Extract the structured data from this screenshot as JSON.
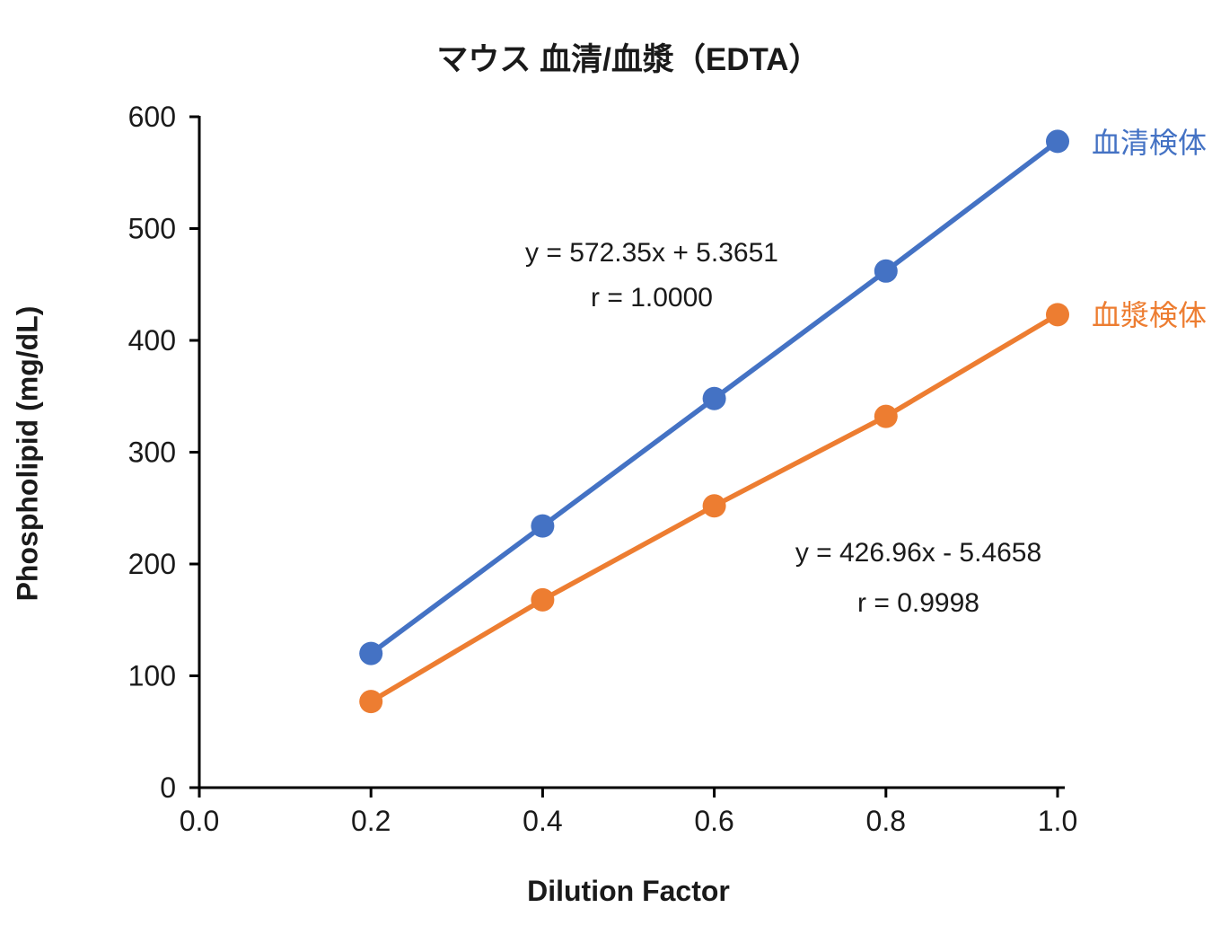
{
  "title": "マウス 血清/血漿（EDTA）",
  "chart_data": {
    "type": "line",
    "x": [
      0.2,
      0.4,
      0.6,
      0.8,
      1.0
    ],
    "series": [
      {
        "name": "血清検体",
        "color": "#4472C4",
        "values": [
          120,
          234,
          348,
          462,
          578
        ],
        "equation": "y = 572.35x + 5.3651",
        "r_label": "r = 1.0000"
      },
      {
        "name": "血漿検体",
        "color": "#ED7D31",
        "values": [
          77,
          168,
          252,
          332,
          423
        ],
        "equation": "y = 426.96x - 5.4658",
        "r_label": "r = 0.9998"
      }
    ],
    "title": "マウス 血清/血漿（EDTA）",
    "xlabel": "Dilution Factor",
    "ylabel": "Phospholipid (mg/dL)",
    "xlim": [
      0.0,
      1.0
    ],
    "ylim": [
      0,
      600
    ],
    "x_ticks": [
      0.0,
      0.2,
      0.4,
      0.6,
      0.8,
      1.0
    ],
    "x_tick_labels": [
      "0.0",
      "0.2",
      "0.4",
      "0.6",
      "0.8",
      "1.0"
    ],
    "y_ticks": [
      0,
      100,
      200,
      300,
      400,
      500,
      600
    ],
    "y_tick_labels": [
      "0",
      "100",
      "200",
      "300",
      "400",
      "500",
      "600"
    ],
    "grid": false,
    "legend_position": "labels-at-line-ends",
    "axis_color": "#000000",
    "marker_radius": 13,
    "line_width": 5.5
  }
}
